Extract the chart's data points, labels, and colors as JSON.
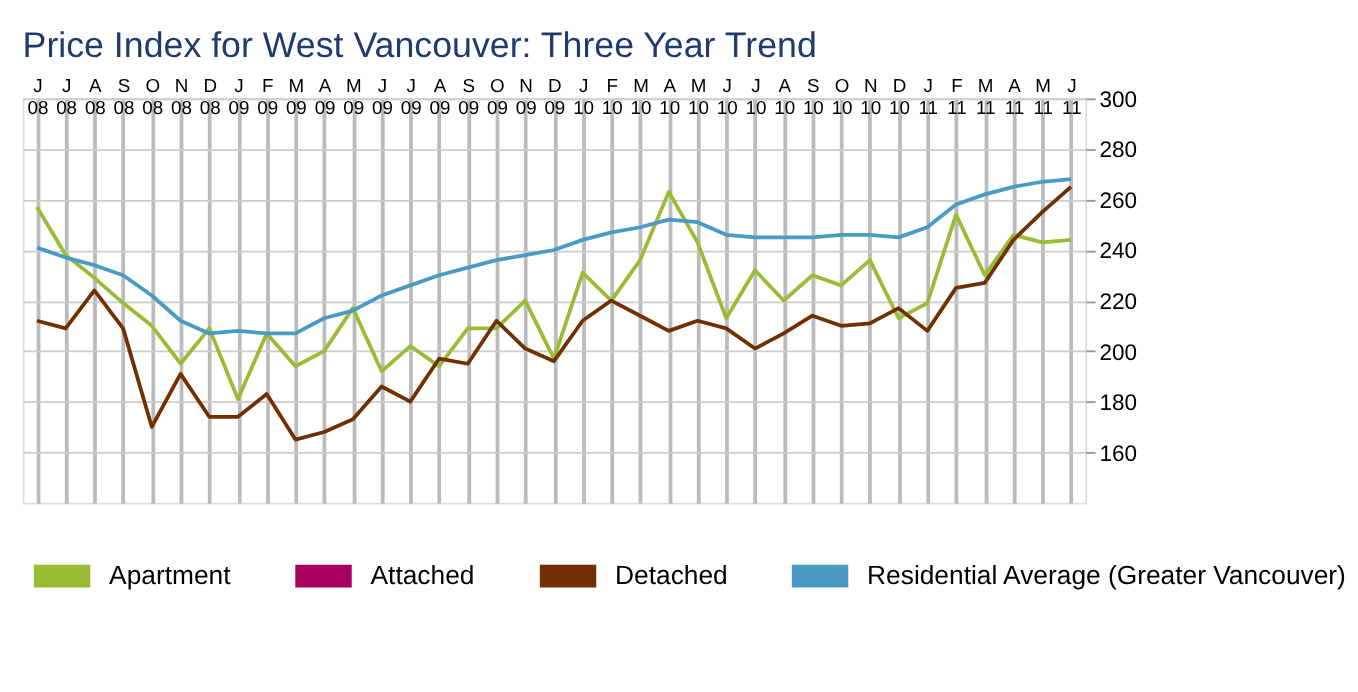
{
  "chart_data": {
    "type": "line",
    "title": "Price Index for West Vancouver: Three Year Trend",
    "categories": [
      "J 08",
      "J 08",
      "A 08",
      "S 08",
      "O 08",
      "N 08",
      "D 08",
      "J 09",
      "F 09",
      "M 09",
      "A 09",
      "M 09",
      "J 09",
      "J 09",
      "A 09",
      "S 09",
      "O 09",
      "N 09",
      "D 09",
      "J 10",
      "F 10",
      "M 10",
      "A 10",
      "M 10",
      "J 10",
      "J 10",
      "A 10",
      "S 10",
      "O 10",
      "N 10",
      "D 10",
      "J 11",
      "F 11",
      "M 11",
      "A 11",
      "M 11",
      "J 11"
    ],
    "series": [
      {
        "name": "Apartment",
        "color": "#9bbb35",
        "values": [
          257,
          238,
          229,
          219,
          210,
          195,
          209,
          181,
          207,
          194,
          200,
          217,
          192,
          202,
          194,
          209,
          209,
          220,
          197,
          231,
          220,
          236,
          263,
          243,
          213,
          232,
          220,
          230,
          226,
          236,
          213,
          219,
          254,
          230,
          246,
          243,
          244
        ]
      },
      {
        "name": "Attached",
        "color": "#a8005f",
        "values": [
          null,
          null,
          null,
          null,
          null,
          null,
          null,
          null,
          null,
          null,
          null,
          null,
          null,
          null,
          null,
          null,
          null,
          null,
          null,
          null,
          null,
          null,
          null,
          null,
          null,
          null,
          null,
          null,
          null,
          null,
          null,
          null,
          null,
          null,
          null,
          null,
          null
        ]
      },
      {
        "name": "Detached",
        "color": "#703000",
        "values": [
          212,
          209,
          224,
          209,
          170,
          191,
          174,
          174,
          183,
          165,
          168,
          173,
          186,
          180,
          197,
          195,
          212,
          201,
          196,
          212,
          220,
          214,
          208,
          212,
          209,
          201,
          207,
          214,
          210,
          211,
          217,
          208,
          225,
          227,
          244,
          255,
          265
        ]
      },
      {
        "name": "Residential Average (Greater Vancouver)",
        "color": "#4a9ac4",
        "values": [
          241,
          237,
          234,
          230,
          222,
          212,
          207,
          208,
          207,
          207,
          213,
          216,
          222,
          226,
          230,
          233,
          236,
          238,
          240,
          244,
          247,
          249,
          252,
          251,
          246,
          245,
          245,
          245,
          246,
          246,
          245,
          249,
          258,
          262,
          265,
          267,
          268
        ]
      }
    ],
    "ylim": [
      140,
      300
    ],
    "yticks": [
      160,
      180,
      200,
      220,
      240,
      260,
      280,
      300
    ],
    "grid": true,
    "legend": "bottom",
    "marker": "none",
    "line_style": "solid"
  }
}
